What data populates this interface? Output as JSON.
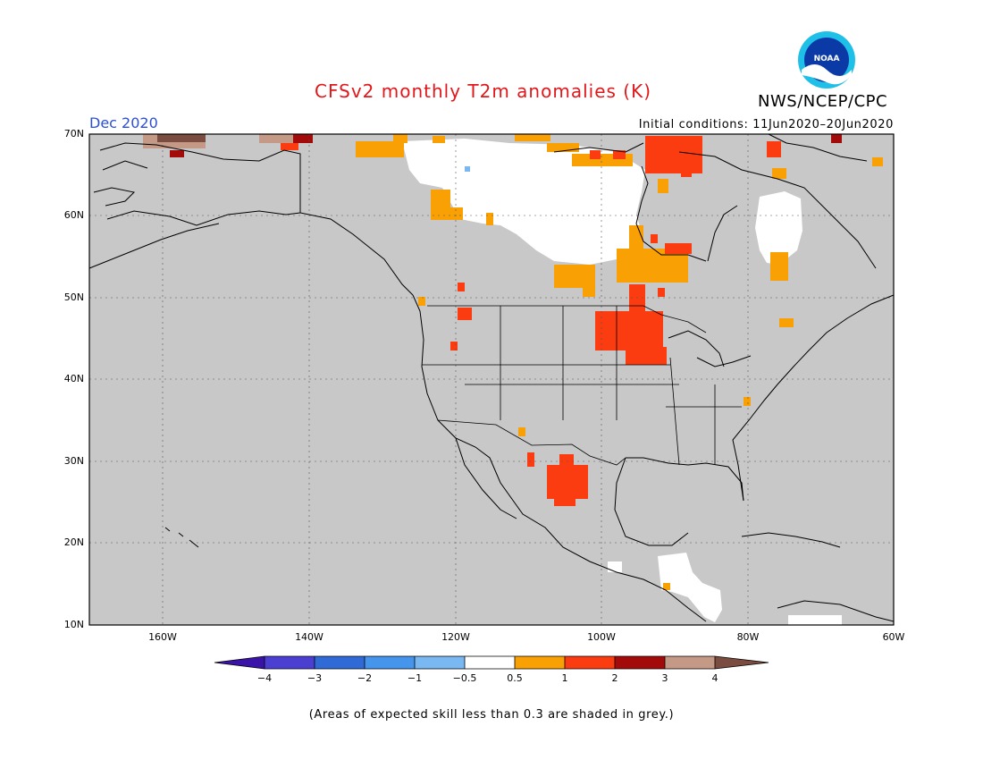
{
  "title": "CFSv2 monthly T2m anomalies (K)",
  "agency": "NWS/NCEP/CPC",
  "logo_text": "NOAA",
  "month": "Dec 2020",
  "initial_conditions": "Initial conditions: 11Jun2020–20Jun2020",
  "footnote": "(Areas of expected skill less than 0.3 are shaded in grey.)",
  "map": {
    "lat_labels": [
      "70N",
      "60N",
      "50N",
      "40N",
      "30N",
      "20N",
      "10N"
    ],
    "lon_labels": [
      "160W",
      "140W",
      "120W",
      "100W",
      "80W",
      "60W"
    ],
    "background_color": "#c8c8c8"
  },
  "colorbar": {
    "labels": [
      "−4",
      "−3",
      "−2",
      "−1",
      "−0.5",
      "0.5",
      "1",
      "2",
      "3",
      "4"
    ],
    "colors": [
      "#3a14a8",
      "#4b3fd2",
      "#2f6ad6",
      "#4595ec",
      "#7ab8f2",
      "#ffffff",
      "#f9a005",
      "#fa3c10",
      "#a30a0a",
      "#c49a86",
      "#7a4d40"
    ]
  }
}
